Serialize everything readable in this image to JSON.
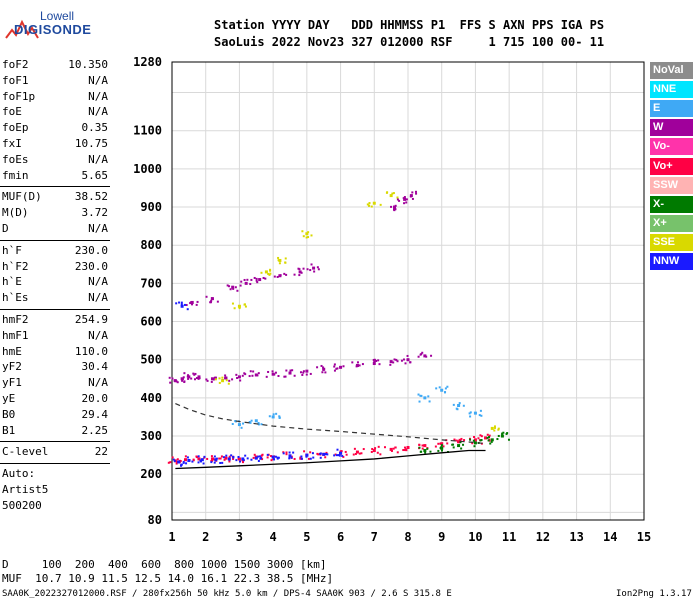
{
  "logo": {
    "top": "Lowell",
    "bottom": "DIGISONDE"
  },
  "header": {
    "line1": "Station YYYY DAY   DDD HHMMSS P1  FFS S AXN PPS IGA PS",
    "line2": "SaoLuis 2022 Nov23 327 012000 RSF     1 715 100 00- 11"
  },
  "params_group1": [
    {
      "k": "foF2",
      "v": "10.350"
    },
    {
      "k": "foF1",
      "v": "N/A"
    },
    {
      "k": "foF1p",
      "v": "N/A"
    },
    {
      "k": "foE",
      "v": "N/A"
    },
    {
      "k": "foEp",
      "v": "0.35"
    },
    {
      "k": "fxI",
      "v": "10.75"
    },
    {
      "k": "foEs",
      "v": "N/A"
    },
    {
      "k": "fmin",
      "v": "5.65"
    }
  ],
  "params_group2": [
    {
      "k": "MUF(D)",
      "v": "38.52"
    },
    {
      "k": "M(D)",
      "v": "3.72"
    },
    {
      "k": "D",
      "v": "N/A"
    }
  ],
  "params_group3": [
    {
      "k": "h`F",
      "v": "230.0"
    },
    {
      "k": "h`F2",
      "v": "230.0"
    },
    {
      "k": "h`E",
      "v": "N/A"
    },
    {
      "k": "h`Es",
      "v": "N/A"
    }
  ],
  "params_group4": [
    {
      "k": "hmF2",
      "v": "254.9"
    },
    {
      "k": "hmF1",
      "v": "N/A"
    },
    {
      "k": "hmE",
      "v": "110.0"
    },
    {
      "k": "yF2",
      "v": "30.4"
    },
    {
      "k": "yF1",
      "v": "N/A"
    },
    {
      "k": "yE",
      "v": "20.0"
    },
    {
      "k": "B0",
      "v": "29.4"
    },
    {
      "k": "B1",
      "v": "2.25"
    }
  ],
  "clevel": {
    "k": "C-level",
    "v": "22"
  },
  "autoscale": [
    "Auto:",
    "Artist5",
    "500200"
  ],
  "legend": [
    {
      "label": "NoVal",
      "bg": "#8c8c8c",
      "fg": "#ffffff"
    },
    {
      "label": "NNE",
      "bg": "#00e5ff",
      "fg": "#ffffff"
    },
    {
      "label": "E",
      "bg": "#3fa9f5",
      "fg": "#ffffff"
    },
    {
      "label": "W",
      "bg": "#a0009b",
      "fg": "#ffffff"
    },
    {
      "label": "Vo-",
      "bg": "#ff33aa",
      "fg": "#ffffff"
    },
    {
      "label": "Vo+",
      "bg": "#ff0044",
      "fg": "#ffffff"
    },
    {
      "label": "SSW",
      "bg": "#ffb3b3",
      "fg": "#ffffff"
    },
    {
      "label": "X-",
      "bg": "#007a00",
      "fg": "#ffffff"
    },
    {
      "label": "X+",
      "bg": "#77c26b",
      "fg": "#ffffff"
    },
    {
      "label": "SSE",
      "bg": "#d9d900",
      "fg": "#ffffff"
    },
    {
      "label": "NNW",
      "bg": "#1a1aff",
      "fg": "#ffffff"
    }
  ],
  "footer": {
    "line1": "D     100  200  400  600  800 1000 1500 3000 [km]",
    "line2": "MUF  10.7 10.9 11.5 12.5 14.0 16.1 22.3 38.5 [MHz]",
    "file": "SAA0K_2022327012000.RSF / 280fx256h 50 kHz 5.0 km / DPS-4 SAA0K 903 / 2.6 S 315.8 E",
    "version": "Ion2Png 1.3.17"
  },
  "chart_data": {
    "type": "scatter",
    "xlim": [
      1,
      15
    ],
    "ylim": [
      80,
      1280
    ],
    "x_ticks": [
      1,
      2,
      3,
      4,
      5,
      6,
      7,
      8,
      9,
      10,
      11,
      12,
      13,
      14,
      15
    ],
    "y_ticks": [
      80,
      200,
      300,
      400,
      500,
      600,
      700,
      800,
      900,
      1000,
      1100,
      1280
    ],
    "grid": true,
    "series": [
      {
        "name": "W",
        "color": "#a0009b",
        "x": [
          1.1,
          1.3,
          1.5,
          1.8,
          2.2,
          2.6,
          3.0,
          3.5,
          4.0,
          4.5,
          5.0,
          5.5,
          6.0,
          6.5,
          7.0,
          7.5,
          8.0,
          8.5,
          1.6,
          2.2,
          2.8,
          3.2,
          3.6,
          4.2,
          4.8,
          5.2,
          7.6,
          7.9,
          8.1
        ],
        "y": [
          445,
          450,
          455,
          455,
          450,
          452,
          455,
          460,
          462,
          465,
          470,
          475,
          480,
          485,
          490,
          495,
          500,
          510,
          650,
          660,
          690,
          700,
          710,
          720,
          730,
          740,
          900,
          920,
          930
        ]
      },
      {
        "name": "Vo+",
        "color": "#ff0044",
        "x": [
          1.1,
          1.4,
          1.8,
          2.2,
          2.6,
          3.0,
          3.5,
          4.0,
          4.5,
          5.0,
          5.5,
          6.0,
          6.5,
          7.0,
          7.5,
          8.0,
          8.5,
          9.0,
          9.5,
          10.0,
          10.3
        ],
        "y": [
          235,
          238,
          240,
          240,
          242,
          240,
          245,
          245,
          248,
          250,
          252,
          255,
          258,
          262,
          265,
          270,
          275,
          280,
          285,
          290,
          295
        ]
      },
      {
        "name": "NNW",
        "color": "#1a1aff",
        "x": [
          1.2,
          1.5,
          1.9,
          2.3,
          2.7,
          3.1,
          3.5,
          4.0,
          4.5,
          5.0,
          5.5,
          6.0,
          1.3
        ],
        "y": [
          232,
          236,
          238,
          238,
          240,
          240,
          242,
          245,
          248,
          250,
          252,
          255,
          640
        ]
      },
      {
        "name": "X-",
        "color": "#007a00",
        "x": [
          8.5,
          9.0,
          9.5,
          10.0,
          10.5,
          10.8
        ],
        "y": [
          262,
          268,
          275,
          282,
          290,
          300
        ]
      },
      {
        "name": "E",
        "color": "#3fa9f5",
        "x": [
          3.0,
          3.5,
          4.0,
          8.5,
          9.0,
          9.5,
          10.0
        ],
        "y": [
          330,
          340,
          350,
          400,
          420,
          380,
          360
        ]
      },
      {
        "name": "SSE",
        "color": "#d9d900",
        "x": [
          2.5,
          3.0,
          3.8,
          4.2,
          5.0,
          7.0,
          7.5,
          10.5
        ],
        "y": [
          445,
          640,
          730,
          760,
          830,
          910,
          930,
          320
        ]
      }
    ],
    "profile_line": {
      "x": [
        1.1,
        2,
        3,
        4,
        5,
        6,
        7,
        8,
        9,
        9.8,
        10.3
      ],
      "y": [
        215,
        218,
        222,
        226,
        230,
        235,
        240,
        248,
        256,
        262,
        262
      ]
    },
    "dashed_line": {
      "x": [
        1.1,
        1.5,
        2,
        2.5,
        3,
        3.5,
        4,
        5,
        6,
        7,
        8,
        9,
        10,
        10.3
      ],
      "y": [
        385,
        370,
        355,
        345,
        338,
        332,
        326,
        318,
        312,
        305,
        298,
        290,
        283,
        280
      ]
    }
  }
}
